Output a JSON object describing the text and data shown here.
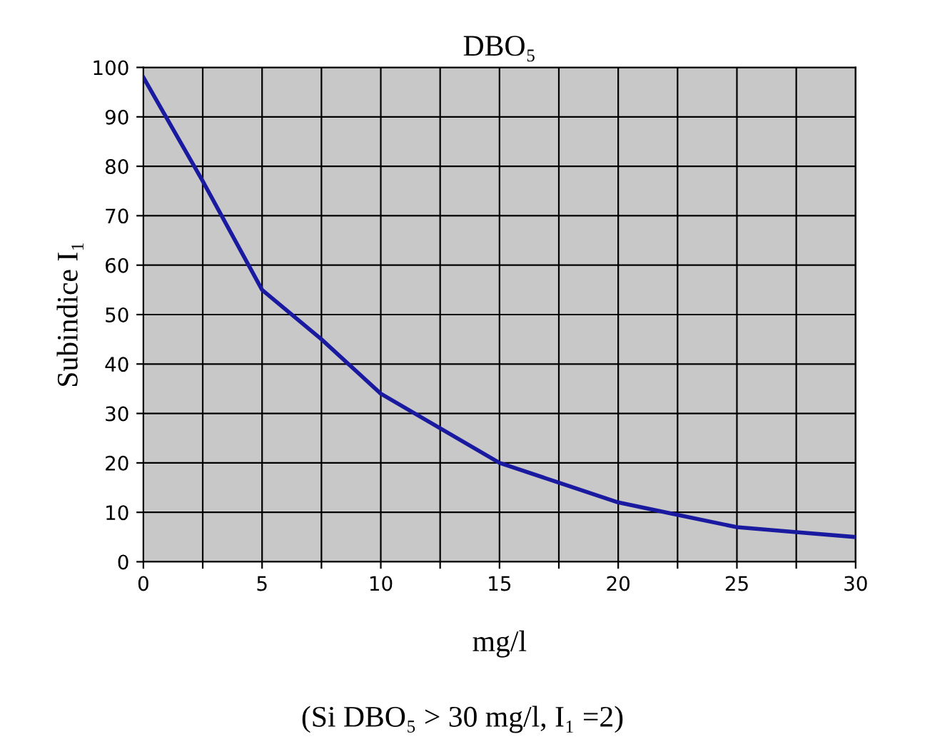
{
  "chart_data": {
    "type": "line",
    "title": "DBO₅",
    "xlabel": "mg/l",
    "ylabel": "Subindice I₁",
    "annotations": [
      "(Si DBO₅ > 30 mg/l, I₁ =2)"
    ],
    "x": [
      0,
      2.5,
      5,
      7.5,
      10,
      12.5,
      15,
      17.5,
      20,
      22.5,
      25,
      27.5,
      30
    ],
    "series": [
      {
        "color": "#1a1aa0",
        "values": [
          98,
          77,
          55,
          45,
          34,
          27,
          20,
          16,
          12,
          9.5,
          7,
          6,
          5
        ]
      }
    ],
    "xlim": [
      0,
      30
    ],
    "ylim": [
      0,
      100
    ],
    "xticks": [
      0,
      {
        "value": 2.5,
        "label": null
      },
      5,
      {
        "value": 7.5,
        "label": null
      },
      10,
      {
        "value": 12.5,
        "label": null
      },
      15,
      {
        "value": 17.5,
        "label": null
      },
      20,
      {
        "value": 22.5,
        "label": null
      },
      25,
      {
        "value": 27.5,
        "label": null
      },
      30
    ],
    "yticks": [
      0,
      10,
      20,
      30,
      40,
      50,
      60,
      70,
      80,
      90,
      100
    ],
    "grid": true,
    "marker": "none",
    "line_style": "solid",
    "legend": false
  }
}
